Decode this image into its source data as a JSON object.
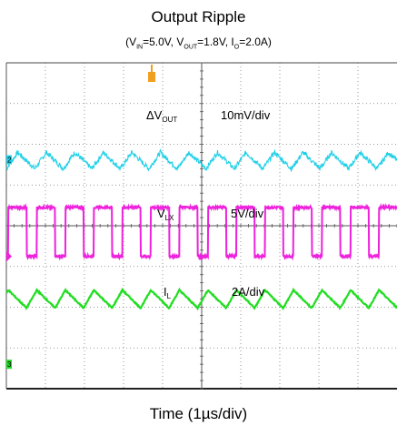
{
  "title": "Output Ripple",
  "subtitle": {
    "vin_label": "V",
    "vin_sub": "IN",
    "vin_value": "=5.0V, ",
    "vout_label": "V",
    "vout_sub": "OUT",
    "vout_value": "=1.8V, ",
    "io_label": "I",
    "io_sub": "O",
    "io_value": "=2.0A)",
    "open_paren": "("
  },
  "xlabel": "Time (1µs/div)",
  "colors": {
    "ch1": "#22d0e8",
    "ch2": "#ee22dd",
    "ch3": "#22dd22",
    "trigger": "#f0a020",
    "grid": "#7a7a7a"
  },
  "chart_data": {
    "type": "line",
    "title": "Output Ripple",
    "xlabel": "Time (1µs/div)",
    "x_divisions": 10,
    "y_divisions": 8,
    "time_per_div": "1µs",
    "series": [
      {
        "name": "ΔV_OUT",
        "scale": "10mV/div",
        "channel_marker": "2",
        "shape": "ripple",
        "center_div": 5.6,
        "amplitude_div": 0.2,
        "period_div": 0.73
      },
      {
        "name": "V_LX",
        "scale": "5V/div",
        "channel_marker": "",
        "shape": "square",
        "low_div": 3.25,
        "high_div": 4.45,
        "period_div": 0.73,
        "duty": 0.36
      },
      {
        "name": "I_L",
        "scale": "2A/div",
        "channel_marker": "3",
        "shape": "triangle",
        "center_div": 2.2,
        "amplitude_div": 0.22,
        "period_div": 0.73
      }
    ],
    "annotations": [
      {
        "label": "ΔV",
        "sub": "OUT",
        "scale": "10mV/div"
      },
      {
        "label": "V",
        "sub": "LX",
        "scale": "5V/div"
      },
      {
        "label": "I",
        "sub": "L",
        "scale": "2A/div"
      }
    ]
  }
}
